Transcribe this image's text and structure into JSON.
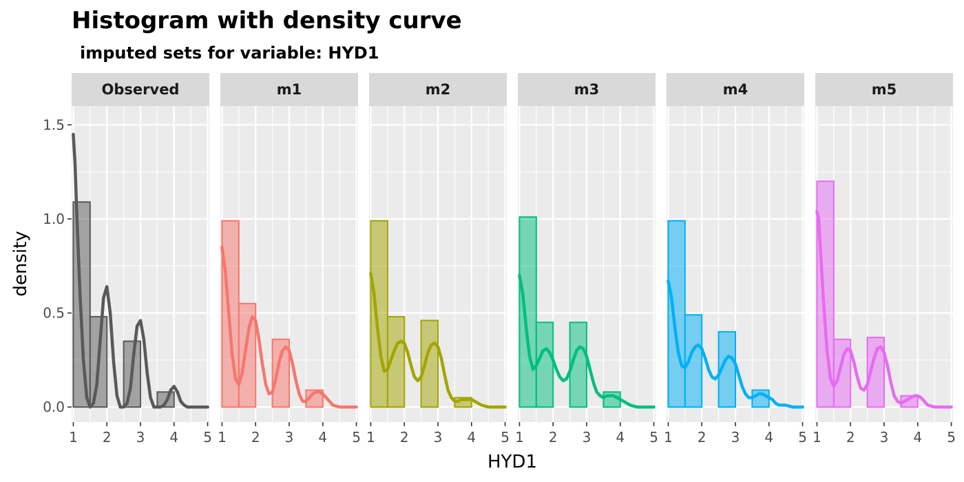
{
  "chart_data": {
    "type": "histogram",
    "title": "Histogram with density curve",
    "subtitle": "imputed sets for variable:  HYD1",
    "xlabel": "HYD1",
    "ylabel": "density",
    "x_ticks": [
      "1",
      "2",
      "3",
      "4",
      "5"
    ],
    "y_ticks": [
      "0.0",
      "0.5",
      "1.0",
      "1.5"
    ],
    "xlim": [
      0.95,
      5.05
    ],
    "ylim": [
      -0.08,
      1.6
    ],
    "bin_edges": [
      1,
      1.5,
      2,
      2.5,
      3,
      3.5,
      4,
      4.5,
      5
    ],
    "grid": true,
    "panels": [
      {
        "label": "Observed",
        "color": "#595959",
        "hist": [
          1.09,
          0.48,
          0.0,
          0.35,
          0.0,
          0.08,
          0.0,
          0.0
        ],
        "density_x": [
          1.0,
          1.05,
          1.1,
          1.2,
          1.3,
          1.4,
          1.5,
          1.6,
          1.7,
          1.8,
          1.9,
          2.0,
          2.1,
          2.2,
          2.3,
          2.4,
          2.5,
          2.6,
          2.7,
          2.8,
          2.9,
          3.0,
          3.1,
          3.2,
          3.3,
          3.4,
          3.5,
          3.6,
          3.7,
          3.8,
          3.9,
          4.0,
          4.1,
          4.2,
          4.3,
          4.4,
          4.5,
          4.7,
          5.0
        ],
        "density_y": [
          1.45,
          1.3,
          1.05,
          0.6,
          0.25,
          0.05,
          0.0,
          0.02,
          0.12,
          0.35,
          0.58,
          0.64,
          0.5,
          0.24,
          0.06,
          0.0,
          0.0,
          0.02,
          0.1,
          0.28,
          0.43,
          0.46,
          0.36,
          0.18,
          0.05,
          0.0,
          0.0,
          0.0,
          0.01,
          0.04,
          0.09,
          0.11,
          0.08,
          0.03,
          0.01,
          0.0,
          0.0,
          0.0,
          0.0
        ]
      },
      {
        "label": "m1",
        "color": "#F8766D",
        "hist": [
          0.99,
          0.55,
          0.0,
          0.36,
          0.0,
          0.09,
          0.0,
          0.0
        ],
        "density_x": [
          1.0,
          1.1,
          1.2,
          1.3,
          1.4,
          1.5,
          1.6,
          1.7,
          1.8,
          1.9,
          2.0,
          2.1,
          2.2,
          2.3,
          2.4,
          2.5,
          2.6,
          2.7,
          2.8,
          2.9,
          3.0,
          3.1,
          3.2,
          3.3,
          3.4,
          3.5,
          3.6,
          3.7,
          3.8,
          3.9,
          4.0,
          4.1,
          4.2,
          4.3,
          4.5,
          4.7,
          5.0
        ],
        "density_y": [
          0.85,
          0.72,
          0.5,
          0.28,
          0.15,
          0.12,
          0.18,
          0.3,
          0.42,
          0.48,
          0.46,
          0.36,
          0.23,
          0.12,
          0.07,
          0.08,
          0.15,
          0.24,
          0.3,
          0.32,
          0.3,
          0.23,
          0.14,
          0.07,
          0.03,
          0.03,
          0.05,
          0.07,
          0.08,
          0.08,
          0.07,
          0.05,
          0.03,
          0.01,
          0.0,
          0.0,
          0.0
        ]
      },
      {
        "label": "m2",
        "color": "#A3A500",
        "hist": [
          0.99,
          0.48,
          0.0,
          0.46,
          0.0,
          0.05,
          0.0,
          0.0
        ],
        "density_x": [
          1.0,
          1.1,
          1.2,
          1.3,
          1.4,
          1.5,
          1.6,
          1.7,
          1.8,
          1.9,
          2.0,
          2.1,
          2.2,
          2.3,
          2.4,
          2.5,
          2.6,
          2.7,
          2.8,
          2.9,
          3.0,
          3.1,
          3.2,
          3.3,
          3.4,
          3.5,
          3.6,
          3.7,
          3.8,
          3.9,
          4.0,
          4.1,
          4.2,
          4.3,
          4.5,
          4.7,
          5.0
        ],
        "density_y": [
          0.71,
          0.6,
          0.42,
          0.27,
          0.19,
          0.2,
          0.25,
          0.3,
          0.34,
          0.35,
          0.34,
          0.29,
          0.22,
          0.16,
          0.14,
          0.16,
          0.22,
          0.29,
          0.33,
          0.34,
          0.32,
          0.26,
          0.17,
          0.09,
          0.05,
          0.03,
          0.03,
          0.04,
          0.04,
          0.04,
          0.04,
          0.03,
          0.02,
          0.01,
          0.0,
          0.0,
          0.0
        ]
      },
      {
        "label": "m3",
        "color": "#00BF7D",
        "hist": [
          1.01,
          0.45,
          0.0,
          0.45,
          0.0,
          0.08,
          0.0,
          0.0
        ],
        "density_x": [
          1.0,
          1.1,
          1.2,
          1.3,
          1.4,
          1.5,
          1.6,
          1.7,
          1.8,
          1.9,
          2.0,
          2.1,
          2.2,
          2.3,
          2.4,
          2.5,
          2.6,
          2.7,
          2.8,
          2.9,
          3.0,
          3.1,
          3.2,
          3.3,
          3.4,
          3.5,
          3.6,
          3.7,
          3.8,
          3.9,
          4.0,
          4.1,
          4.2,
          4.3,
          4.5,
          4.7,
          5.0
        ],
        "density_y": [
          0.7,
          0.6,
          0.42,
          0.27,
          0.2,
          0.22,
          0.26,
          0.3,
          0.31,
          0.29,
          0.25,
          0.2,
          0.16,
          0.14,
          0.15,
          0.19,
          0.25,
          0.3,
          0.32,
          0.31,
          0.27,
          0.2,
          0.13,
          0.08,
          0.06,
          0.05,
          0.06,
          0.06,
          0.06,
          0.05,
          0.04,
          0.03,
          0.02,
          0.01,
          0.0,
          0.0,
          0.0
        ]
      },
      {
        "label": "m4",
        "color": "#00B0F6",
        "hist": [
          0.99,
          0.49,
          0.0,
          0.4,
          0.0,
          0.09,
          0.0,
          0.0
        ],
        "density_x": [
          1.0,
          1.1,
          1.2,
          1.3,
          1.4,
          1.5,
          1.6,
          1.7,
          1.8,
          1.9,
          2.0,
          2.1,
          2.2,
          2.3,
          2.4,
          2.5,
          2.6,
          2.7,
          2.8,
          2.9,
          3.0,
          3.1,
          3.2,
          3.3,
          3.4,
          3.5,
          3.6,
          3.7,
          3.8,
          3.9,
          4.0,
          4.1,
          4.2,
          4.3,
          4.5,
          4.7,
          5.0
        ],
        "density_y": [
          0.67,
          0.58,
          0.42,
          0.29,
          0.22,
          0.21,
          0.24,
          0.29,
          0.32,
          0.33,
          0.31,
          0.26,
          0.2,
          0.16,
          0.15,
          0.17,
          0.21,
          0.25,
          0.27,
          0.26,
          0.23,
          0.17,
          0.11,
          0.07,
          0.05,
          0.05,
          0.06,
          0.07,
          0.07,
          0.06,
          0.05,
          0.04,
          0.02,
          0.01,
          0.01,
          0.0,
          0.0
        ]
      },
      {
        "label": "m5",
        "color": "#E76BF3",
        "hist": [
          1.2,
          0.36,
          0.0,
          0.37,
          0.0,
          0.06,
          0.0,
          0.0
        ],
        "density_x": [
          1.0,
          1.05,
          1.1,
          1.2,
          1.3,
          1.4,
          1.5,
          1.6,
          1.7,
          1.8,
          1.9,
          2.0,
          2.1,
          2.2,
          2.3,
          2.4,
          2.5,
          2.6,
          2.7,
          2.8,
          2.9,
          3.0,
          3.1,
          3.2,
          3.3,
          3.4,
          3.5,
          3.6,
          3.7,
          3.8,
          3.9,
          4.0,
          4.1,
          4.2,
          4.3,
          4.5,
          4.7,
          5.0
        ],
        "density_y": [
          1.04,
          1.0,
          0.85,
          0.55,
          0.3,
          0.15,
          0.11,
          0.14,
          0.21,
          0.28,
          0.31,
          0.3,
          0.24,
          0.16,
          0.1,
          0.09,
          0.12,
          0.19,
          0.26,
          0.31,
          0.32,
          0.29,
          0.22,
          0.13,
          0.06,
          0.03,
          0.02,
          0.03,
          0.04,
          0.05,
          0.06,
          0.06,
          0.05,
          0.03,
          0.01,
          0.0,
          0.0,
          0.0
        ]
      }
    ]
  }
}
